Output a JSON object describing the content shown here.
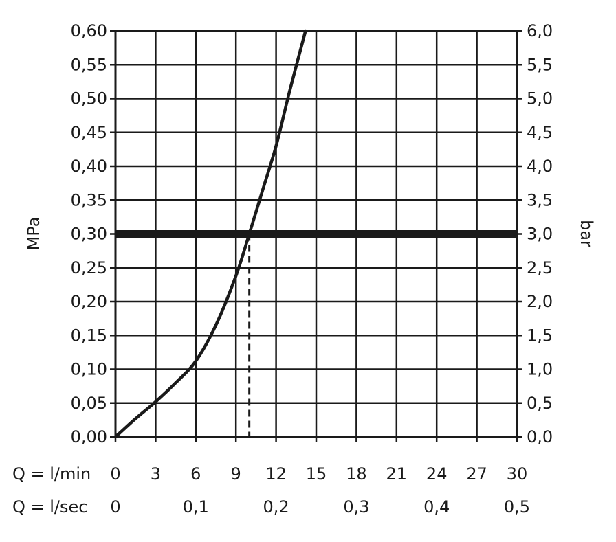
{
  "chart_data": {
    "type": "line",
    "title": "",
    "left_axis": {
      "label": "MPa",
      "range": [
        0,
        0.6
      ],
      "ticks": [
        "0,00",
        "0,05",
        "0,10",
        "0,15",
        "0,20",
        "0,25",
        "0,30",
        "0,35",
        "0,40",
        "0,45",
        "0,50",
        "0,55",
        "0,60"
      ]
    },
    "right_axis": {
      "label": "bar",
      "range": [
        0,
        6
      ],
      "ticks": [
        "0,0",
        "0,5",
        "1,0",
        "1,5",
        "2,0",
        "2,5",
        "3,0",
        "3,5",
        "4,0",
        "4,5",
        "5,0",
        "5,5",
        "6,0"
      ]
    },
    "x_axis_lpm": {
      "label": "Q = l/min",
      "range": [
        0,
        30
      ],
      "ticks": [
        {
          "value": 0,
          "label": "0"
        },
        {
          "value": 3,
          "label": "3"
        },
        {
          "value": 6,
          "label": "6"
        },
        {
          "value": 9,
          "label": "9"
        },
        {
          "value": 12,
          "label": "12"
        },
        {
          "value": 15,
          "label": "15"
        },
        {
          "value": 18,
          "label": "18"
        },
        {
          "value": 21,
          "label": "21"
        },
        {
          "value": 24,
          "label": "24"
        },
        {
          "value": 27,
          "label": "27"
        },
        {
          "value": 30,
          "label": "30"
        }
      ]
    },
    "x_axis_lps": {
      "label": "Q = l/sec",
      "ticks": [
        {
          "value": 0,
          "label": "0"
        },
        {
          "value": 0.1,
          "label": "0,1"
        },
        {
          "value": 0.2,
          "label": "0,2"
        },
        {
          "value": 0.3,
          "label": "0,3"
        },
        {
          "value": 0.4,
          "label": "0,4"
        },
        {
          "value": 0.5,
          "label": "0,5"
        }
      ]
    },
    "grid": true,
    "series": [
      {
        "x": [
          0,
          1.5,
          3,
          4.5,
          6,
          7.5,
          9,
          10,
          11,
          12,
          13,
          14.2
        ],
        "y": [
          0,
          0.027,
          0.052,
          0.08,
          0.112,
          0.165,
          0.238,
          0.3,
          0.365,
          0.43,
          0.51,
          0.6
        ]
      }
    ],
    "reference_line": {
      "y": 0.3
    },
    "marker": {
      "x": 10,
      "y": 0.3
    }
  }
}
